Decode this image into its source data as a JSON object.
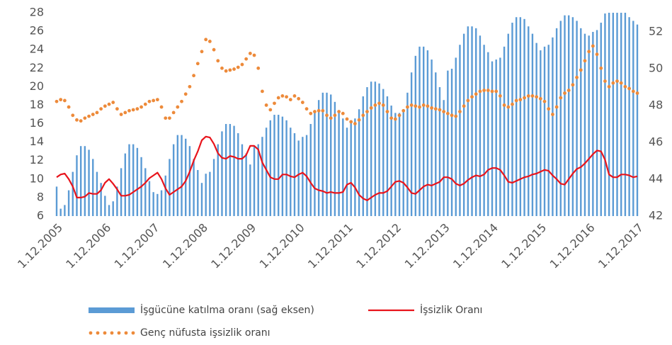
{
  "chart_data": {
    "type": "combo",
    "categories": [
      "1.12.2005",
      null,
      null,
      null,
      null,
      null,
      null,
      null,
      null,
      null,
      null,
      null,
      "1.12.2006",
      null,
      null,
      null,
      null,
      null,
      null,
      null,
      null,
      null,
      null,
      null,
      "1.12.2007",
      null,
      null,
      null,
      null,
      null,
      null,
      null,
      null,
      null,
      null,
      null,
      "1.12.2008",
      null,
      null,
      null,
      null,
      null,
      null,
      null,
      null,
      null,
      null,
      null,
      "1.12.2009",
      null,
      null,
      null,
      null,
      null,
      null,
      null,
      null,
      null,
      null,
      null,
      "1.12.2010",
      null,
      null,
      null,
      null,
      null,
      null,
      null,
      null,
      null,
      null,
      null,
      "1.12.2011",
      null,
      null,
      null,
      null,
      null,
      null,
      null,
      null,
      null,
      null,
      null,
      "1.12.2012",
      null,
      null,
      null,
      null,
      null,
      null,
      null,
      null,
      null,
      null,
      null,
      "1.12.2013",
      null,
      null,
      null,
      null,
      null,
      null,
      null,
      null,
      null,
      null,
      null,
      "1.12.2014",
      null,
      null,
      null,
      null,
      null,
      null,
      null,
      null,
      null,
      null,
      null,
      "1.12.2015",
      null,
      null,
      null,
      null,
      null,
      null,
      null,
      null,
      null,
      null,
      null,
      "1.12.2016",
      null,
      null,
      null,
      null,
      null,
      null,
      null,
      null,
      null,
      null,
      null,
      "1.12.2017"
    ],
    "ylim": [
      6,
      28
    ],
    "yticks": [
      6,
      8,
      10,
      12,
      14,
      16,
      18,
      20,
      22,
      24,
      26,
      28
    ],
    "y2lim": [
      42,
      53.04
    ],
    "y2ticks": [
      42,
      44,
      46,
      48,
      50,
      52
    ],
    "series": [
      {
        "name": "İşgücüne katılma oranı (sağ eksen)",
        "type": "bar",
        "axis": "y2",
        "color": "#5b9bd5",
        "values": [
          43.6,
          42.4,
          42.6,
          43.4,
          44.4,
          45.3,
          45.8,
          45.8,
          45.6,
          45.1,
          44.4,
          43.8,
          43.1,
          42.6,
          42.8,
          43.6,
          44.6,
          45.4,
          45.9,
          45.9,
          45.7,
          45.2,
          44.6,
          43.9,
          43.3,
          43.2,
          43.4,
          44.2,
          45.1,
          45.9,
          46.4,
          46.4,
          46.2,
          45.8,
          45.1,
          44.5,
          43.8,
          44.3,
          44.4,
          45.1,
          45.9,
          46.6,
          47.0,
          47.0,
          46.9,
          46.5,
          45.9,
          45.4,
          44.8,
          45.8,
          45.9,
          46.3,
          46.8,
          47.2,
          47.5,
          47.5,
          47.4,
          47.2,
          46.8,
          46.5,
          46.1,
          46.3,
          46.4,
          47.0,
          47.7,
          48.3,
          48.7,
          48.7,
          48.6,
          48.2,
          47.7,
          47.3,
          46.8,
          47.2,
          47.3,
          47.8,
          48.5,
          49.0,
          49.3,
          49.3,
          49.2,
          48.9,
          48.5,
          48.0,
          47.6,
          47.6,
          47.8,
          48.7,
          49.8,
          50.7,
          51.2,
          51.2,
          51.0,
          50.5,
          49.8,
          49.0,
          48.3,
          49.9,
          50.0,
          50.6,
          51.3,
          51.9,
          52.3,
          52.3,
          52.2,
          51.8,
          51.3,
          50.9,
          50.4,
          50.5,
          50.6,
          51.2,
          51.9,
          52.5,
          52.8,
          52.8,
          52.7,
          52.3,
          51.9,
          51.4,
          51.0,
          51.2,
          51.3,
          51.7,
          52.2,
          52.6,
          52.9,
          52.9,
          52.8,
          52.6,
          52.2,
          51.9,
          51.8,
          52.0,
          52.1,
          52.5,
          53.0,
          53.3,
          53.5,
          53.5,
          53.4,
          53.1,
          52.8,
          52.6,
          52.4
        ]
      },
      {
        "name": "İşsizlik Oranı",
        "type": "line",
        "axis": "y",
        "color": "#e8141c",
        "values": [
          10.2,
          10.5,
          10.6,
          10.0,
          9.2,
          8.0,
          8.0,
          8.1,
          8.5,
          8.4,
          8.4,
          8.8,
          9.6,
          10.0,
          9.5,
          8.9,
          8.2,
          8.2,
          8.3,
          8.6,
          8.9,
          9.2,
          9.6,
          10.1,
          10.4,
          10.7,
          10.0,
          9.0,
          8.3,
          8.6,
          8.9,
          9.2,
          9.8,
          10.8,
          12.0,
          13.0,
          14.2,
          14.6,
          14.5,
          13.8,
          12.8,
          12.3,
          12.2,
          12.5,
          12.4,
          12.2,
          12.2,
          12.6,
          13.6,
          13.6,
          13.2,
          11.8,
          11.0,
          10.2,
          10.0,
          10.0,
          10.5,
          10.5,
          10.3,
          10.2,
          10.5,
          10.7,
          10.3,
          9.6,
          9.0,
          8.8,
          8.7,
          8.5,
          8.6,
          8.5,
          8.5,
          8.6,
          9.4,
          9.6,
          9.1,
          8.3,
          7.9,
          7.7,
          8.0,
          8.3,
          8.5,
          8.5,
          8.7,
          9.2,
          9.7,
          9.8,
          9.6,
          9.1,
          8.5,
          8.4,
          8.8,
          9.2,
          9.4,
          9.3,
          9.5,
          9.7,
          10.2,
          10.2,
          10.0,
          9.5,
          9.3,
          9.5,
          9.9,
          10.2,
          10.4,
          10.3,
          10.5,
          11.0,
          11.2,
          11.2,
          11.0,
          10.4,
          9.7,
          9.6,
          9.8,
          10.0,
          10.2,
          10.3,
          10.5,
          10.6,
          10.8,
          11.0,
          10.9,
          10.4,
          10.0,
          9.5,
          9.4,
          10.0,
          10.6,
          11.1,
          11.3,
          11.7,
          12.2,
          12.7,
          13.1,
          13.0,
          12.1,
          10.5,
          10.2,
          10.2,
          10.5,
          10.5,
          10.4,
          10.2,
          10.3
        ]
      },
      {
        "name": "Genç nüfusta işsizlik oranı",
        "type": "dots",
        "axis": "y",
        "color": "#ed8a3a",
        "values": [
          18.4,
          18.6,
          18.5,
          17.8,
          16.9,
          16.4,
          16.3,
          16.6,
          16.8,
          17.0,
          17.2,
          17.6,
          17.9,
          18.1,
          18.3,
          17.6,
          17.0,
          17.2,
          17.4,
          17.5,
          17.6,
          17.8,
          18.1,
          18.4,
          18.5,
          18.6,
          17.8,
          16.6,
          16.6,
          17.2,
          17.8,
          18.4,
          19.2,
          20.0,
          21.2,
          22.5,
          23.8,
          25.1,
          24.9,
          24.0,
          22.8,
          22.0,
          21.7,
          21.8,
          21.9,
          22.1,
          22.4,
          23.0,
          23.6,
          23.4,
          22.0,
          19.5,
          18.0,
          17.5,
          18.2,
          18.8,
          19.0,
          18.9,
          18.6,
          19.0,
          18.7,
          18.3,
          17.6,
          17.1,
          17.3,
          17.4,
          17.4,
          16.9,
          16.6,
          16.9,
          17.3,
          17.1,
          16.5,
          16.2,
          16.0,
          16.4,
          16.9,
          17.3,
          17.7,
          18.0,
          18.2,
          18.0,
          17.3,
          16.6,
          16.5,
          16.9,
          17.4,
          17.8,
          18.0,
          17.9,
          17.8,
          18.0,
          17.9,
          17.7,
          17.6,
          17.5,
          17.3,
          17.1,
          16.9,
          16.8,
          17.3,
          17.9,
          18.5,
          18.9,
          19.2,
          19.5,
          19.6,
          19.6,
          19.5,
          19.5,
          19.0,
          18.0,
          17.8,
          18.1,
          18.5,
          18.6,
          18.8,
          19.0,
          19.0,
          18.9,
          18.7,
          18.4,
          17.6,
          17.0,
          17.8,
          18.8,
          19.3,
          19.6,
          20.2,
          21.0,
          21.8,
          22.8,
          23.8,
          24.4,
          23.5,
          22.0,
          20.6,
          20.0,
          20.4,
          20.6,
          20.4,
          20.0,
          19.8,
          19.5,
          19.3
        ]
      }
    ]
  }
}
